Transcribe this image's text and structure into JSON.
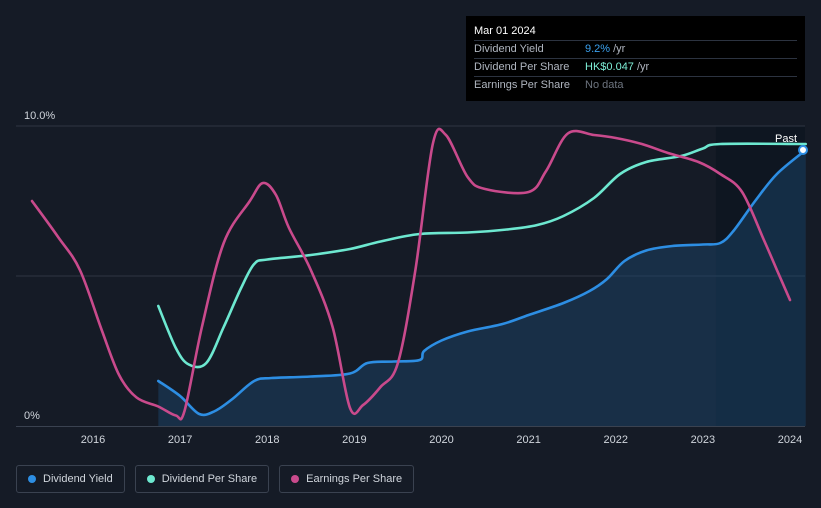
{
  "tooltip": {
    "date": "Mar 01 2024",
    "rows": [
      {
        "label": "Dividend Yield",
        "value": "9.2%",
        "unit": "/yr"
      },
      {
        "label": "Dividend Per Share",
        "value": "HK$0.047",
        "unit": "/yr"
      },
      {
        "label": "Earnings Per Share",
        "value": "No data",
        "unit": ""
      }
    ]
  },
  "colors": {
    "background": "#151b26",
    "yield": "#2d8ee3",
    "dps": "#6de8d0",
    "eps": "#c94a8c",
    "past_region": "#0e1621"
  },
  "legend": [
    {
      "label": "Dividend Yield",
      "color": "#2d8ee3"
    },
    {
      "label": "Dividend Per Share",
      "color": "#6de8d0"
    },
    {
      "label": "Earnings Per Share",
      "color": "#c94a8c"
    }
  ],
  "chart_data": {
    "type": "line",
    "title": "",
    "past_label": "Past",
    "y_ticks": [
      {
        "value": 10,
        "label": "10.0%"
      },
      {
        "value": 0,
        "label": "0%"
      }
    ],
    "x_ticks": [
      "2016",
      "2017",
      "2018",
      "2019",
      "2020",
      "2021",
      "2022",
      "2023",
      "2024"
    ],
    "ylim": [
      0,
      10
    ],
    "xlim": [
      2015.05,
      2024.18
    ],
    "past_start": 2023.15,
    "series": [
      {
        "name": "Dividend Yield",
        "area": true,
        "points": [
          [
            2016.75,
            1.5
          ],
          [
            2017.0,
            1.0
          ],
          [
            2017.22,
            0.4
          ],
          [
            2017.4,
            0.5
          ],
          [
            2017.6,
            0.9
          ],
          [
            2017.85,
            1.5
          ],
          [
            2018.05,
            1.6
          ],
          [
            2018.5,
            1.65
          ],
          [
            2018.95,
            1.75
          ],
          [
            2019.15,
            2.1
          ],
          [
            2019.45,
            2.15
          ],
          [
            2019.75,
            2.2
          ],
          [
            2019.8,
            2.5
          ],
          [
            2020.0,
            2.85
          ],
          [
            2020.3,
            3.15
          ],
          [
            2020.7,
            3.4
          ],
          [
            2021.0,
            3.7
          ],
          [
            2021.4,
            4.1
          ],
          [
            2021.7,
            4.5
          ],
          [
            2021.9,
            4.9
          ],
          [
            2022.1,
            5.5
          ],
          [
            2022.35,
            5.85
          ],
          [
            2022.65,
            6.0
          ],
          [
            2023.0,
            6.05
          ],
          [
            2023.2,
            6.1
          ],
          [
            2023.35,
            6.5
          ],
          [
            2023.6,
            7.5
          ],
          [
            2023.85,
            8.4
          ],
          [
            2024.18,
            9.2
          ]
        ]
      },
      {
        "name": "Dividend Per Share",
        "area": false,
        "points": [
          [
            2016.75,
            4.0
          ],
          [
            2016.95,
            2.6
          ],
          [
            2017.1,
            2.05
          ],
          [
            2017.3,
            2.1
          ],
          [
            2017.5,
            3.3
          ],
          [
            2017.7,
            4.6
          ],
          [
            2017.85,
            5.4
          ],
          [
            2018.0,
            5.55
          ],
          [
            2018.5,
            5.7
          ],
          [
            2018.95,
            5.9
          ],
          [
            2019.3,
            6.15
          ],
          [
            2019.75,
            6.4
          ],
          [
            2020.3,
            6.45
          ],
          [
            2020.75,
            6.55
          ],
          [
            2021.1,
            6.7
          ],
          [
            2021.4,
            7.0
          ],
          [
            2021.75,
            7.6
          ],
          [
            2022.05,
            8.4
          ],
          [
            2022.35,
            8.8
          ],
          [
            2022.75,
            9.0
          ],
          [
            2023.0,
            9.25
          ],
          [
            2023.2,
            9.4
          ],
          [
            2024.18,
            9.4
          ]
        ]
      },
      {
        "name": "Earnings Per Share",
        "area": false,
        "points": [
          [
            2015.3,
            7.5
          ],
          [
            2015.6,
            6.3
          ],
          [
            2015.85,
            5.2
          ],
          [
            2016.1,
            3.2
          ],
          [
            2016.3,
            1.7
          ],
          [
            2016.5,
            0.95
          ],
          [
            2016.75,
            0.65
          ],
          [
            2016.95,
            0.35
          ],
          [
            2017.05,
            0.5
          ],
          [
            2017.25,
            3.3
          ],
          [
            2017.5,
            6.1
          ],
          [
            2017.8,
            7.5
          ],
          [
            2017.95,
            8.1
          ],
          [
            2018.1,
            7.7
          ],
          [
            2018.25,
            6.6
          ],
          [
            2018.5,
            5.2
          ],
          [
            2018.75,
            3.3
          ],
          [
            2018.95,
            0.6
          ],
          [
            2019.1,
            0.7
          ],
          [
            2019.3,
            1.3
          ],
          [
            2019.5,
            2.1
          ],
          [
            2019.7,
            5.2
          ],
          [
            2019.9,
            9.4
          ],
          [
            2020.05,
            9.7
          ],
          [
            2020.3,
            8.3
          ],
          [
            2020.5,
            7.9
          ],
          [
            2021.0,
            7.8
          ],
          [
            2021.2,
            8.5
          ],
          [
            2021.45,
            9.75
          ],
          [
            2021.75,
            9.7
          ],
          [
            2022.0,
            9.6
          ],
          [
            2022.3,
            9.4
          ],
          [
            2022.6,
            9.1
          ],
          [
            2022.95,
            8.8
          ],
          [
            2023.2,
            8.4
          ],
          [
            2023.45,
            7.8
          ],
          [
            2023.7,
            6.2
          ],
          [
            2023.85,
            5.2
          ],
          [
            2024.0,
            4.2
          ]
        ]
      }
    ]
  }
}
